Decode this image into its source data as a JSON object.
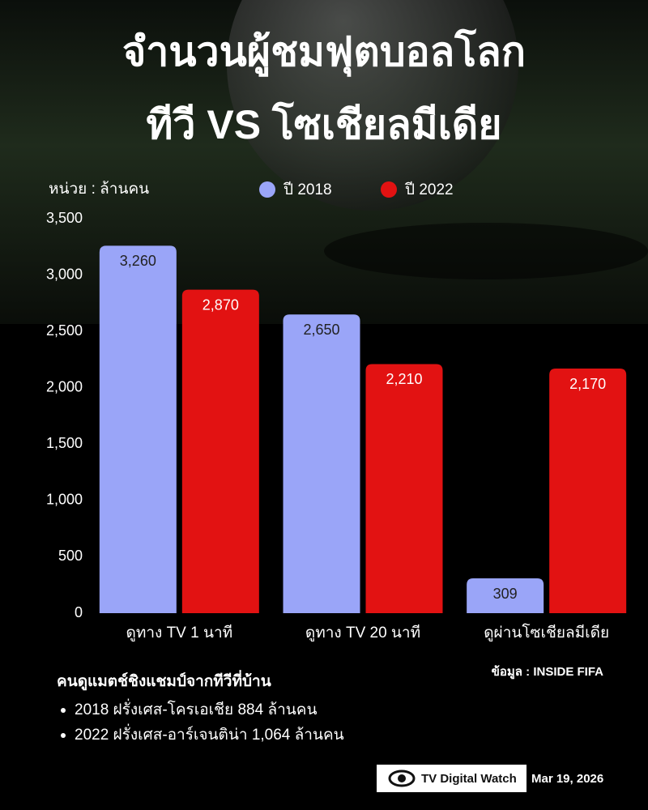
{
  "chart_data": {
    "type": "bar",
    "title": [
      "จำนวนผู้ชมฟุตบอลโลก",
      "ทีวี VS  โซเชียลมีเดีย"
    ],
    "unit_label": "หน่วย : ล้านคน",
    "categories": [
      "ดูทาง TV 1 นาที",
      "ดูทาง TV 20 นาที",
      "ดูผ่านโซเชียลมีเดีย"
    ],
    "series": [
      {
        "name": "ปี 2018",
        "color": "#9aa5f8",
        "label_color": "#222222",
        "values": [
          3260,
          2650,
          309
        ],
        "value_labels": [
          "3,260",
          "2,650",
          "309"
        ]
      },
      {
        "name": "ปี 2022",
        "color": "#e21212",
        "label_color": "#ffffff",
        "values": [
          2870,
          2210,
          2170
        ],
        "value_labels": [
          "2,870",
          "2,210",
          "2,170"
        ]
      }
    ],
    "ylim": [
      0,
      3500
    ],
    "yticks": [
      0,
      500,
      {
        "value": 1000,
        "label": "1,000"
      },
      {
        "value": 1500,
        "label": "1,500"
      },
      {
        "value": 2000,
        "label": "2,000"
      },
      {
        "value": 2500,
        "label": "2,500"
      },
      {
        "value": 3000,
        "label": "3,000"
      },
      {
        "value": 3500,
        "label": "3,500"
      }
    ],
    "grid": false,
    "legend_position": "top"
  },
  "notes": {
    "heading": "คนดูแมตช์ชิงแชมป์จากทีวีที่บ้าน",
    "items": [
      "2018 ฝรั่งเศส-โครเอเชีย 884 ล้านคน",
      "2022 ฝรั่งเศส-อาร์เจนติน่า  1,064 ล้านคน"
    ]
  },
  "source": "ข้อมูล : INSIDE FIFA",
  "footer": {
    "brand": "TV Digital Watch",
    "date": "Mar 19, 2026"
  }
}
